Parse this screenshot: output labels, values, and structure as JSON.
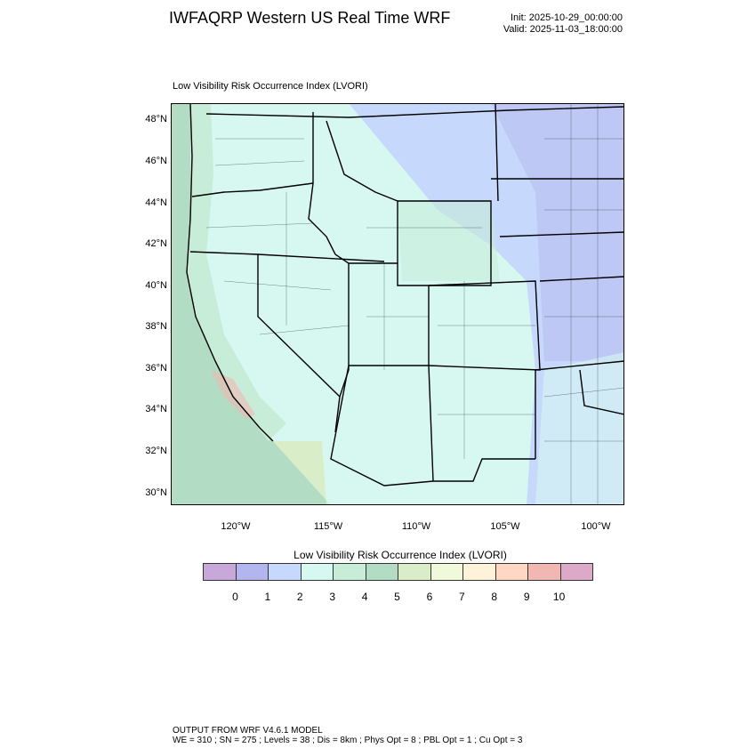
{
  "header": {
    "title": "IWFAQRP Western US Real Time WRF",
    "init": "Init: 2025-10-29_00:00:00",
    "valid": "Valid: 2025-11-03_18:00:00"
  },
  "plot": {
    "subtitle": "Low Visibility Risk Occurrence Index   (LVORI)",
    "lat_labels": [
      "48°N",
      "46°N",
      "44°N",
      "42°N",
      "40°N",
      "38°N",
      "36°N",
      "34°N",
      "32°N",
      "30°N"
    ],
    "lon_labels": [
      "120°W",
      "115°W",
      "110°W",
      "105°W",
      "100°W"
    ]
  },
  "colorbar": {
    "title": "Low Visibility Risk Occurrence Index  (LVORI)",
    "colors": [
      "#c8a8da",
      "#b3b6ee",
      "#c6d8fb",
      "#d7f8f1",
      "#c7edd9",
      "#b2dcc4",
      "#daedc9",
      "#f0f9da",
      "#fef3d9",
      "#fed8c4",
      "#f1b7b2",
      "#dcaac8"
    ],
    "labels": [
      "0",
      "1",
      "2",
      "3",
      "4",
      "5",
      "6",
      "7",
      "8",
      "9",
      "10"
    ]
  },
  "footer": {
    "line1": "OUTPUT FROM WRF V4.6.1 MODEL",
    "line2": "WE = 310 ; SN = 275 ; Levels = 38 ; Dis = 8km ; Phys Opt = 8 ; PBL Opt = 1 ; Cu Opt = 3"
  }
}
